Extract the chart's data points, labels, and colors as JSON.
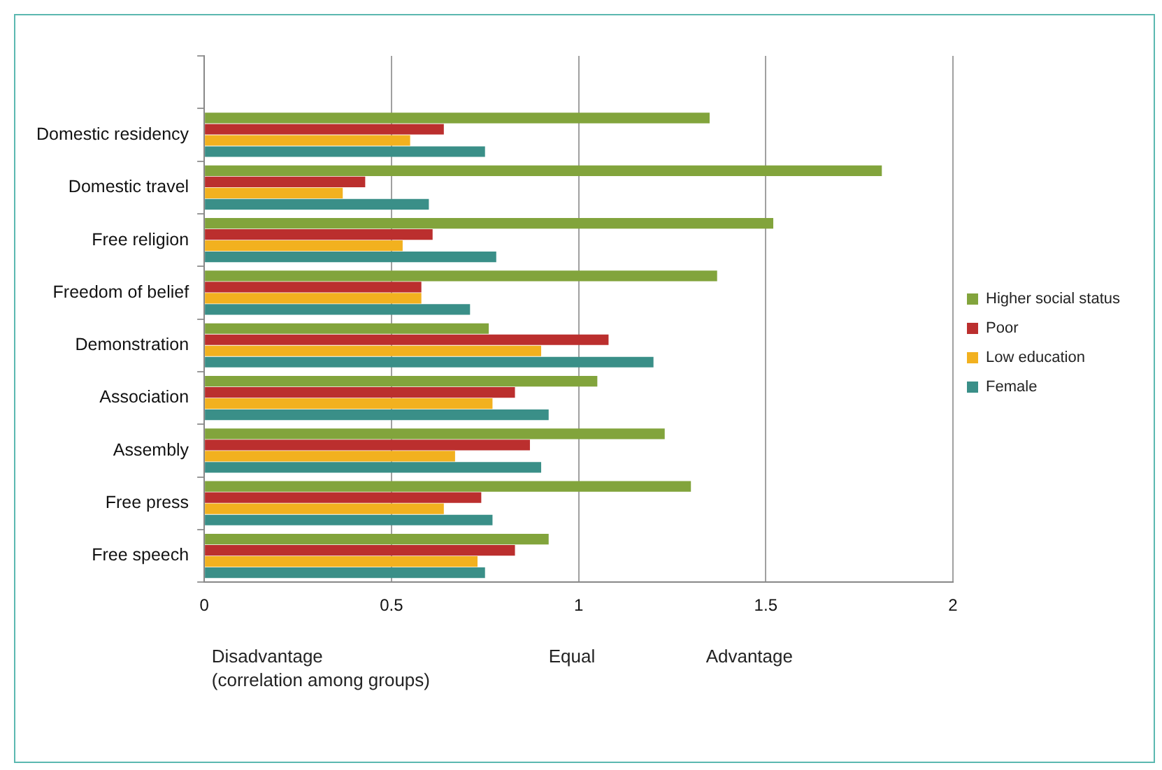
{
  "chart_data": {
    "type": "bar",
    "orientation": "horizontal",
    "categories": [
      null,
      "Domestic residency",
      "Domestic travel",
      "Free religion",
      "Freedom of belief",
      "Demonstration",
      "Association",
      "Assembly",
      "Free press",
      "Free speech"
    ],
    "series": [
      {
        "name": "Higher social status",
        "color": "#82a43c",
        "values": [
          null,
          1.35,
          1.81,
          1.52,
          1.37,
          0.76,
          1.05,
          1.23,
          1.3,
          0.92
        ]
      },
      {
        "name": "Poor",
        "color": "#bb2f2e",
        "values": [
          null,
          0.64,
          0.43,
          0.61,
          0.58,
          1.08,
          0.83,
          0.87,
          0.74,
          0.83
        ]
      },
      {
        "name": "Low education",
        "color": "#f2b11f",
        "values": [
          null,
          0.55,
          0.37,
          0.53,
          0.58,
          0.9,
          0.77,
          0.67,
          0.64,
          0.73
        ]
      },
      {
        "name": "Female",
        "color": "#3a8f88",
        "values": [
          null,
          0.75,
          0.6,
          0.78,
          0.71,
          1.2,
          0.92,
          0.9,
          0.77,
          0.75
        ]
      }
    ],
    "xlim": [
      0,
      2
    ],
    "xticks": [
      0,
      0.5,
      1,
      1.5,
      2
    ],
    "grid": "x",
    "legend": "right",
    "annotations": [
      "Disadvantage\n(correlation among groups)",
      "Equal",
      "Advantage"
    ]
  }
}
